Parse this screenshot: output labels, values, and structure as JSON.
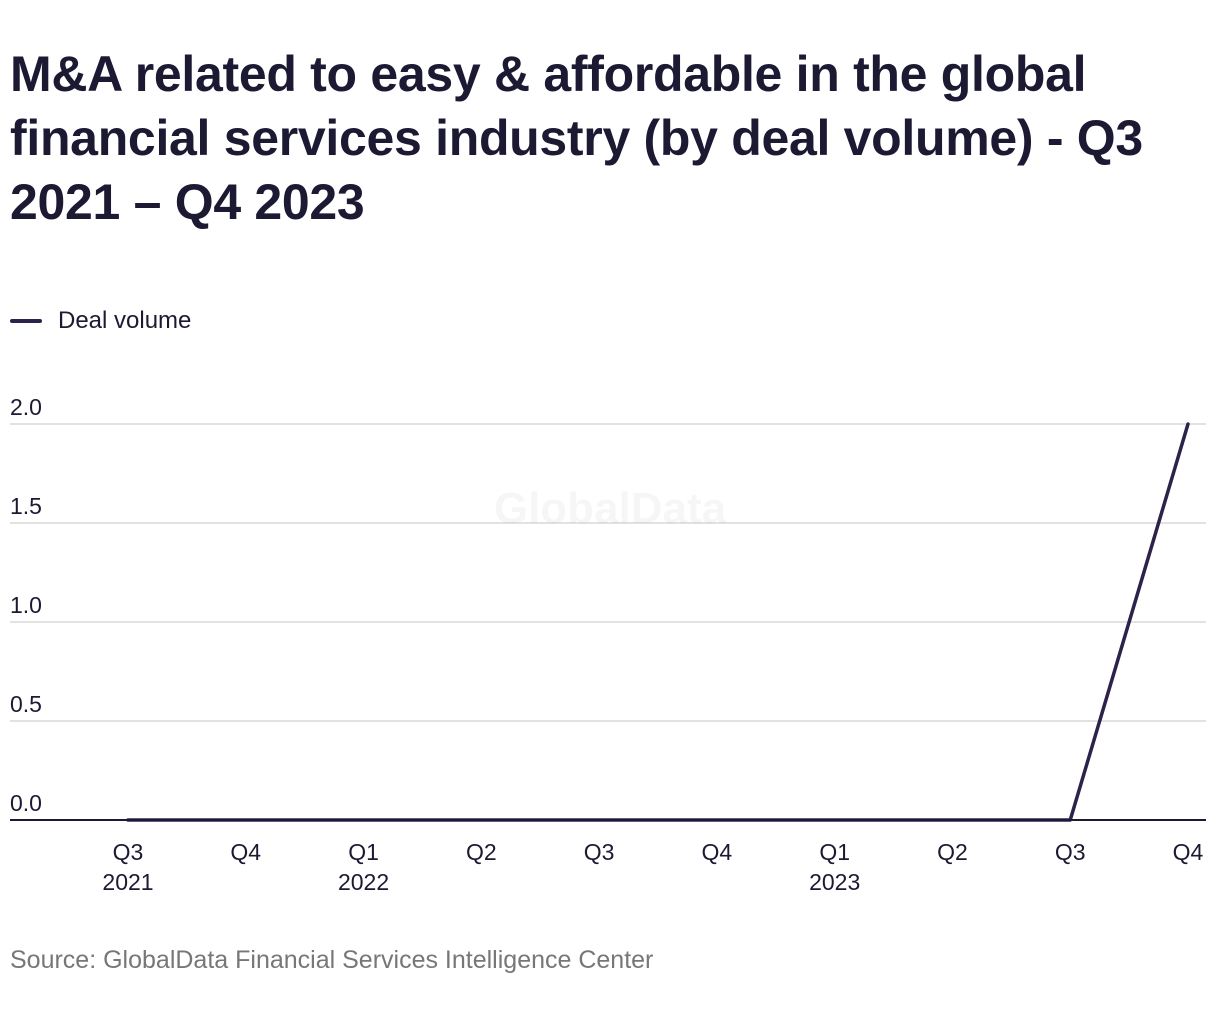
{
  "title": "M&A related to easy & affordable in the global financial services industry (by deal volume) - Q3 2021 – Q4 2023",
  "legend": {
    "label": "Deal volume"
  },
  "watermark": "GlobalData",
  "source": "Source: GlobalData Financial Services Intelligence Center",
  "colors": {
    "line": "#2d2249",
    "grid": "#d9d9d9",
    "axis": "#1c1a33",
    "text": "#1c1a33"
  },
  "chart_data": {
    "type": "line",
    "categories": [
      "Q3 2021",
      "Q4 2021",
      "Q1 2022",
      "Q2 2022",
      "Q3 2022",
      "Q4 2022",
      "Q1 2023",
      "Q2 2023",
      "Q3 2023",
      "Q4 2023"
    ],
    "tick_labels": [
      {
        "quarter": "Q3",
        "year": "2021"
      },
      {
        "quarter": "Q4",
        "year": ""
      },
      {
        "quarter": "Q1",
        "year": "2022"
      },
      {
        "quarter": "Q2",
        "year": ""
      },
      {
        "quarter": "Q3",
        "year": ""
      },
      {
        "quarter": "Q4",
        "year": ""
      },
      {
        "quarter": "Q1",
        "year": "2023"
      },
      {
        "quarter": "Q2",
        "year": ""
      },
      {
        "quarter": "Q3",
        "year": ""
      },
      {
        "quarter": "Q4",
        "year": ""
      }
    ],
    "series": [
      {
        "name": "Deal volume",
        "values": [
          0,
          0,
          0,
          0,
          0,
          0,
          0,
          0,
          0,
          2
        ]
      }
    ],
    "y_ticks": [
      "0.0",
      "0.5",
      "1.0",
      "1.5",
      "2.0"
    ],
    "ylim": [
      0,
      2
    ],
    "grid": true,
    "legend_position": "top-left",
    "title": "M&A related to easy & affordable in the global financial services industry (by deal volume) - Q3 2021 – Q4 2023",
    "xlabel": "",
    "ylabel": ""
  }
}
